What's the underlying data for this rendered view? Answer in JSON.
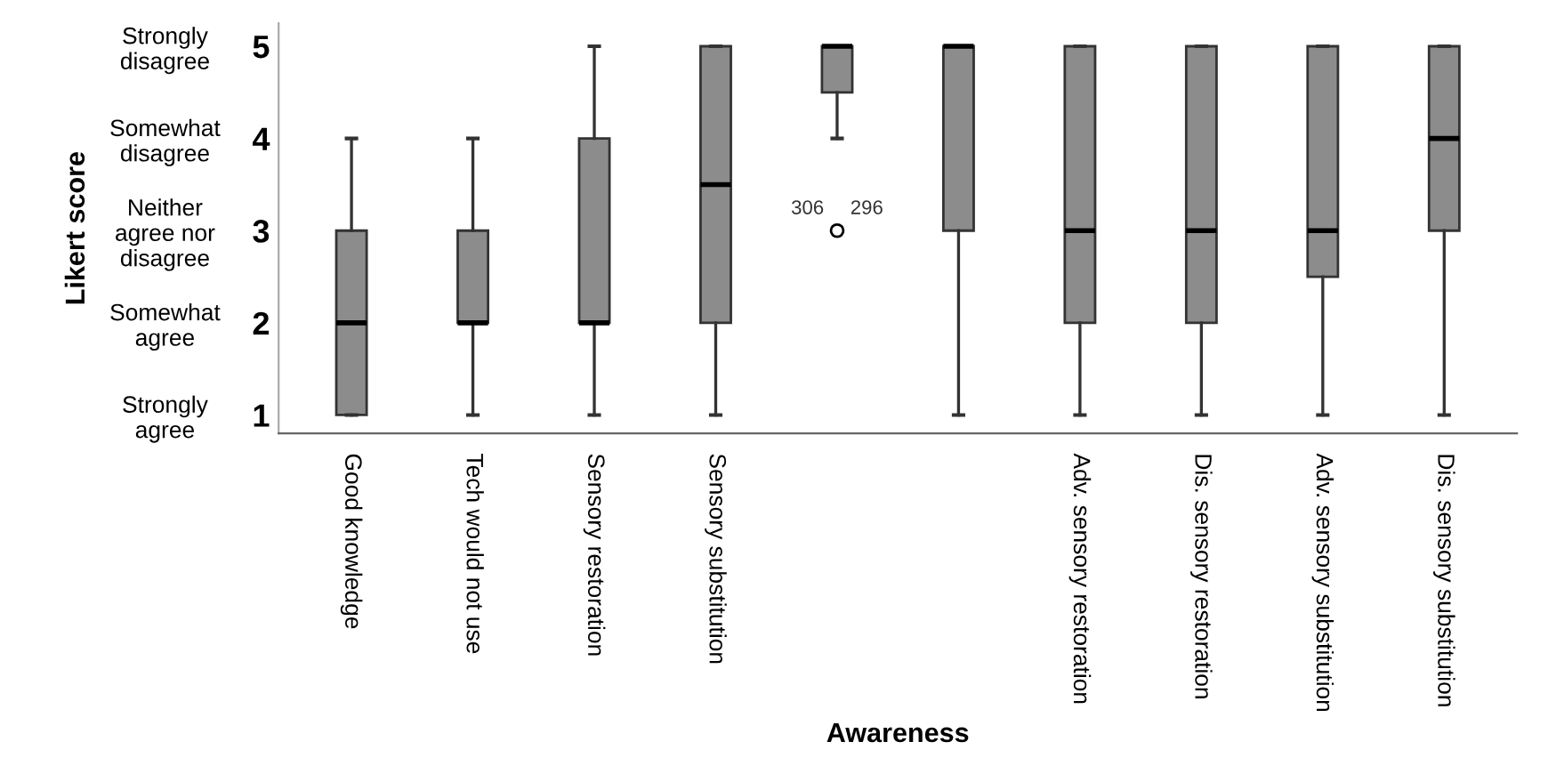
{
  "chart_data": {
    "type": "box",
    "xlabel": "Awareness",
    "categories": [
      "Good knowledge",
      "Tech would not use",
      "Sensory restoration",
      "Sensory substitution",
      null,
      null,
      "Adv. sensory restoration",
      "Dis. sensory restoration",
      "Adv. sensory substitution",
      "Dis. sensory substitution"
    ],
    "boxes": [
      {
        "low": 1,
        "q1": 1,
        "median": 2,
        "q3": 3,
        "high": 4
      },
      {
        "low": 1,
        "q1": 2,
        "median": 2,
        "q3": 3,
        "high": 4
      },
      {
        "low": 1,
        "q1": 2,
        "median": 2,
        "q3": 4,
        "high": 5
      },
      {
        "low": 1,
        "q1": 2,
        "median": 3.5,
        "q3": 5,
        "high": 5
      },
      {
        "low": 4,
        "q1": 4.5,
        "median": 5,
        "q3": 5,
        "high": 5,
        "outliers": [
          3
        ]
      },
      {
        "low": 1,
        "q1": 3,
        "median": 5,
        "q3": 5,
        "high": 5
      },
      {
        "low": 1,
        "q1": 2,
        "median": 3,
        "q3": 5,
        "high": 5
      },
      {
        "low": 1,
        "q1": 2,
        "median": 3,
        "q3": 5,
        "high": 5
      },
      {
        "low": 1,
        "q1": 2.5,
        "median": 3,
        "q3": 5,
        "high": 5
      },
      {
        "low": 1,
        "q1": 3,
        "median": 4,
        "q3": 5,
        "high": 5
      }
    ],
    "color": "#8c8c8c",
    "annotations": [
      "306",
      "296",
      "Strongly\nagree",
      "Somewhat\nagree",
      "Neither\nagree nor\ndisagree",
      "Somewhat\ndisagree",
      "Strongly\ndisagree",
      "Likert score"
    ],
    "ylim": [
      0.8,
      5.25
    ],
    "yticks": [
      1,
      2,
      3,
      4,
      5
    ],
    "grid": false
  }
}
